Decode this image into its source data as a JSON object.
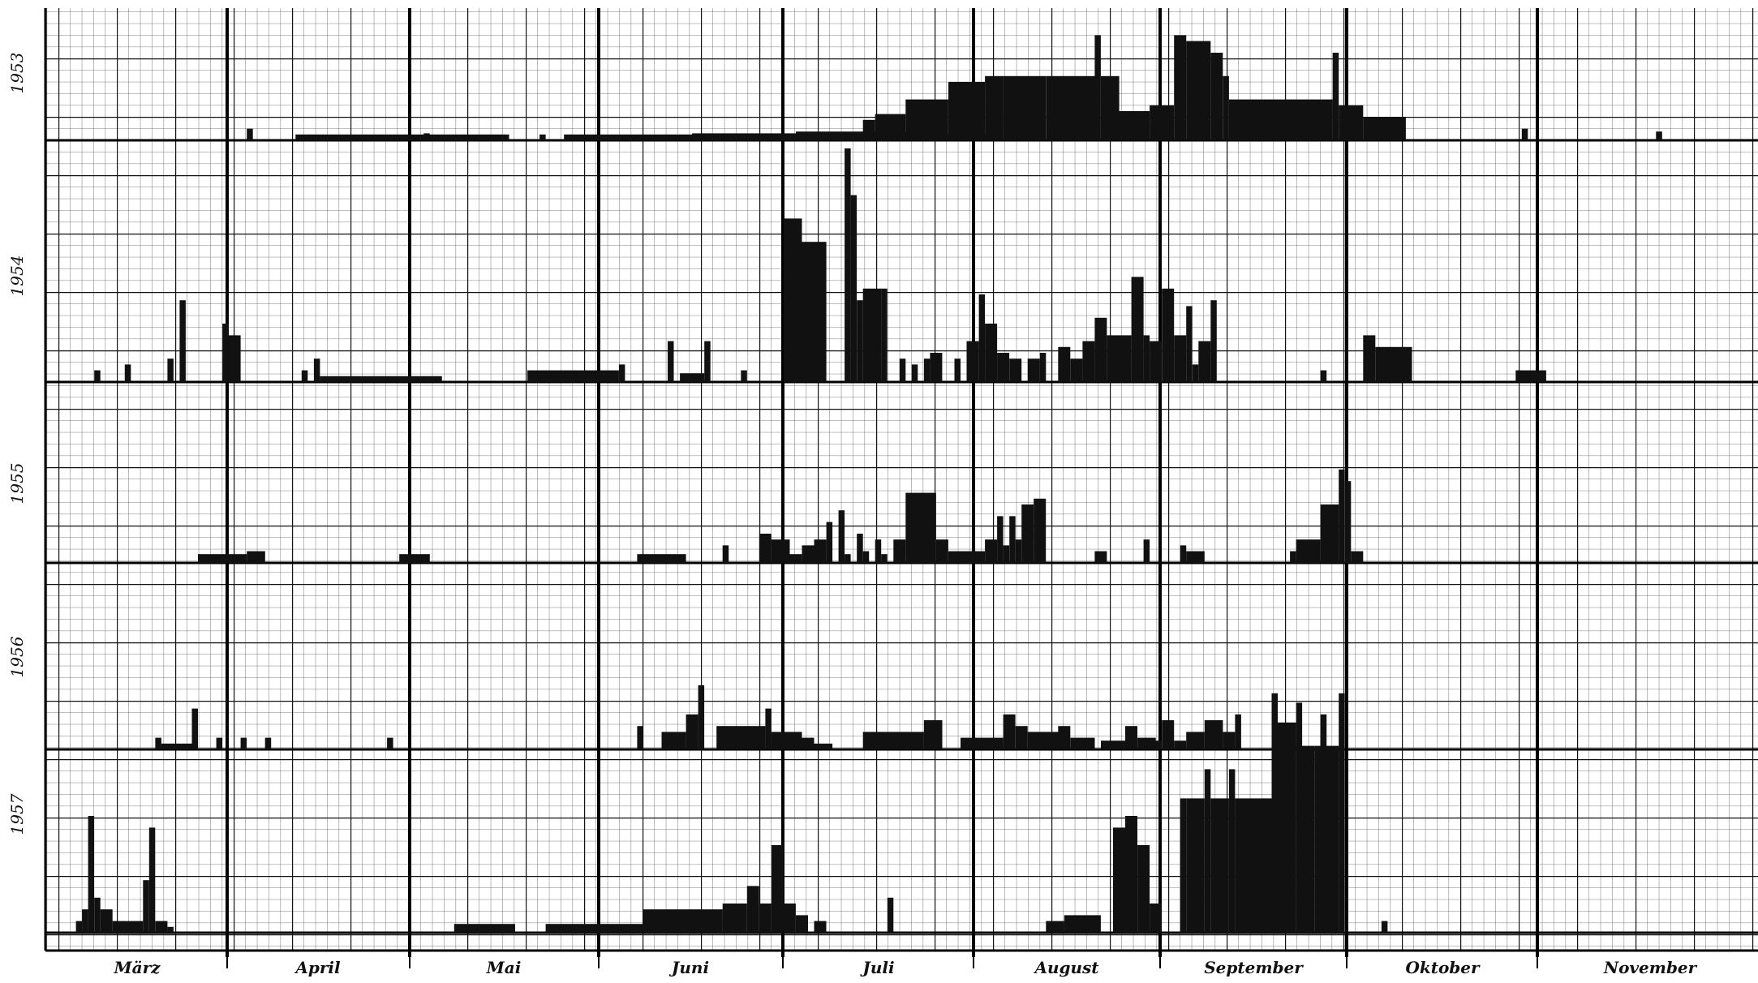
{
  "chart_data": {
    "type": "bar",
    "grid": true,
    "months": [
      "März",
      "April",
      "Mai",
      "Juni",
      "Juli",
      "August",
      "September",
      "Oktober",
      "November"
    ],
    "series": [
      {
        "name": "1953",
        "bars": [
          [
            33,
            1,
            2
          ],
          [
            41,
            35,
            1
          ],
          [
            62,
            1,
            1.2
          ],
          [
            81,
            1,
            1
          ],
          [
            85,
            70,
            1
          ],
          [
            106,
            33,
            1.2
          ],
          [
            123,
            22,
            1.5
          ],
          [
            134,
            2,
            3.5
          ],
          [
            136,
            5,
            4.5
          ],
          [
            141,
            7,
            7
          ],
          [
            148,
            6,
            10
          ],
          [
            154,
            3,
            11
          ],
          [
            157,
            7,
            11
          ],
          [
            164,
            8,
            11
          ],
          [
            172,
            1,
            18
          ],
          [
            173,
            3,
            11
          ],
          [
            176,
            5,
            5
          ],
          [
            181,
            4,
            6
          ],
          [
            185,
            2,
            18
          ],
          [
            187,
            4,
            17
          ],
          [
            191,
            2,
            15
          ],
          [
            193,
            1,
            11
          ],
          [
            194,
            4,
            7
          ],
          [
            198,
            13,
            7
          ],
          [
            211,
            1,
            15
          ],
          [
            212,
            4,
            6
          ],
          [
            216,
            7,
            4
          ],
          [
            242,
            1,
            2
          ],
          [
            264,
            1,
            1.5
          ]
        ]
      },
      {
        "name": "1954",
        "bars": [
          [
            8,
            1,
            2
          ],
          [
            13,
            1,
            3
          ],
          [
            20,
            1,
            4
          ],
          [
            22,
            1,
            14
          ],
          [
            29,
            1,
            10
          ],
          [
            30,
            2,
            8
          ],
          [
            42,
            1,
            2
          ],
          [
            44,
            1,
            4
          ],
          [
            45,
            20,
            1
          ],
          [
            79,
            15,
            2
          ],
          [
            94,
            1,
            3
          ],
          [
            102,
            1,
            7
          ],
          [
            104,
            4,
            1.5
          ],
          [
            108,
            1,
            7
          ],
          [
            114,
            1,
            2
          ],
          [
            121,
            3,
            28
          ],
          [
            124,
            4,
            24
          ],
          [
            131,
            1,
            40
          ],
          [
            132,
            1,
            32
          ],
          [
            133,
            1,
            14
          ],
          [
            134,
            3,
            16
          ],
          [
            137,
            1,
            16
          ],
          [
            140,
            1,
            4
          ],
          [
            142,
            1,
            3
          ],
          [
            144,
            1,
            4
          ],
          [
            145,
            2,
            5
          ],
          [
            149,
            1,
            4
          ],
          [
            151,
            2,
            7
          ],
          [
            153,
            1,
            15
          ],
          [
            154,
            2,
            10
          ],
          [
            156,
            2,
            5
          ],
          [
            158,
            2,
            4
          ],
          [
            161,
            2,
            4
          ],
          [
            163,
            1,
            5
          ],
          [
            166,
            2,
            6
          ],
          [
            168,
            2,
            4
          ],
          [
            170,
            2,
            7
          ],
          [
            172,
            2,
            11
          ],
          [
            174,
            2,
            8
          ],
          [
            176,
            2,
            8
          ],
          [
            178,
            2,
            18
          ],
          [
            180,
            1,
            8
          ],
          [
            181,
            2,
            7
          ],
          [
            183,
            2,
            16
          ],
          [
            185,
            2,
            8
          ],
          [
            187,
            1,
            13
          ],
          [
            188,
            1,
            3
          ],
          [
            189,
            2,
            7
          ],
          [
            191,
            1,
            14
          ],
          [
            209,
            1,
            2
          ],
          [
            216,
            2,
            8
          ],
          [
            218,
            6,
            6
          ],
          [
            241,
            5,
            2
          ]
        ]
      },
      {
        "name": "1955",
        "bars": [
          [
            25,
            8,
            1.5
          ],
          [
            33,
            3,
            2
          ],
          [
            58,
            5,
            1.5
          ],
          [
            97,
            8,
            1.5
          ],
          [
            111,
            1,
            3
          ],
          [
            117,
            2,
            5
          ],
          [
            119,
            3,
            4
          ],
          [
            122,
            2,
            1.5
          ],
          [
            124,
            2,
            3
          ],
          [
            126,
            2,
            4
          ],
          [
            128,
            1,
            7
          ],
          [
            130,
            1,
            9
          ],
          [
            131,
            1,
            1.5
          ],
          [
            133,
            1,
            5
          ],
          [
            134,
            1,
            2
          ],
          [
            136,
            1,
            4
          ],
          [
            137,
            1,
            1.5
          ],
          [
            139,
            2,
            4
          ],
          [
            141,
            5,
            12
          ],
          [
            146,
            2,
            4
          ],
          [
            148,
            2,
            2
          ],
          [
            150,
            2,
            2
          ],
          [
            152,
            2,
            2
          ],
          [
            154,
            2,
            4
          ],
          [
            156,
            1,
            8
          ],
          [
            157,
            1,
            3
          ],
          [
            158,
            1,
            8
          ],
          [
            159,
            1,
            4
          ],
          [
            160,
            2,
            10
          ],
          [
            162,
            2,
            11
          ],
          [
            172,
            2,
            2
          ],
          [
            180,
            1,
            4
          ],
          [
            186,
            1,
            3
          ],
          [
            187,
            3,
            2
          ],
          [
            204,
            1,
            2
          ],
          [
            205,
            4,
            4
          ],
          [
            209,
            3,
            10
          ],
          [
            212,
            1,
            16
          ],
          [
            213,
            1,
            14
          ],
          [
            214,
            2,
            2
          ]
        ]
      },
      {
        "name": "1956",
        "bars": [
          [
            18,
            1,
            2
          ],
          [
            19,
            5,
            1
          ],
          [
            24,
            1,
            7
          ],
          [
            28,
            1,
            2
          ],
          [
            32,
            1,
            2
          ],
          [
            36,
            1,
            2
          ],
          [
            56,
            1,
            2
          ],
          [
            97,
            1,
            4
          ],
          [
            101,
            4,
            3
          ],
          [
            105,
            2,
            6
          ],
          [
            107,
            1,
            11
          ],
          [
            110,
            8,
            4
          ],
          [
            118,
            1,
            7
          ],
          [
            119,
            5,
            3
          ],
          [
            124,
            2,
            2
          ],
          [
            126,
            3,
            1
          ],
          [
            134,
            10,
            3
          ],
          [
            144,
            3,
            5
          ],
          [
            150,
            7,
            2
          ],
          [
            157,
            2,
            6
          ],
          [
            159,
            2,
            4
          ],
          [
            161,
            6,
            3
          ],
          [
            166,
            2,
            4
          ],
          [
            168,
            4,
            2
          ],
          [
            173,
            4,
            1.5
          ],
          [
            177,
            2,
            4
          ],
          [
            179,
            3,
            2
          ],
          [
            181,
            2,
            1.5
          ],
          [
            183,
            2,
            5
          ],
          [
            185,
            2,
            1.5
          ],
          [
            187,
            3,
            3
          ],
          [
            190,
            3,
            5
          ],
          [
            193,
            2,
            3
          ],
          [
            195,
            1,
            6
          ],
          [
            205,
            1,
            8
          ],
          [
            209,
            1,
            6
          ]
        ]
      },
      {
        "name": "1957",
        "bars": [
          [
            5,
            1,
            2
          ],
          [
            6,
            1,
            4
          ],
          [
            7,
            1,
            20
          ],
          [
            8,
            1,
            6
          ],
          [
            9,
            2,
            4
          ],
          [
            11,
            5,
            2
          ],
          [
            16,
            1,
            9
          ],
          [
            17,
            1,
            18
          ],
          [
            18,
            2,
            2
          ],
          [
            20,
            1,
            1
          ],
          [
            67,
            10,
            1.5
          ],
          [
            82,
            16,
            1.5
          ],
          [
            98,
            13,
            4
          ],
          [
            111,
            4,
            5
          ],
          [
            115,
            2,
            8
          ],
          [
            117,
            2,
            5
          ],
          [
            119,
            2,
            15
          ],
          [
            121,
            2,
            5
          ],
          [
            123,
            2,
            3
          ],
          [
            126,
            2,
            2
          ],
          [
            138,
            1,
            6
          ],
          [
            164,
            3,
            2
          ],
          [
            167,
            6,
            3
          ],
          [
            175,
            2,
            18
          ],
          [
            177,
            2,
            20
          ],
          [
            179,
            2,
            15
          ],
          [
            181,
            2,
            5
          ],
          [
            186,
            1,
            23
          ],
          [
            187,
            3,
            23
          ],
          [
            190,
            1,
            28
          ],
          [
            191,
            3,
            23
          ],
          [
            194,
            1,
            28
          ],
          [
            195,
            6,
            23
          ],
          [
            201,
            1,
            41
          ],
          [
            202,
            3,
            36
          ],
          [
            205,
            3,
            32
          ],
          [
            208,
            4,
            32
          ],
          [
            212,
            1,
            41
          ],
          [
            219,
            1,
            2
          ]
        ]
      }
    ]
  }
}
